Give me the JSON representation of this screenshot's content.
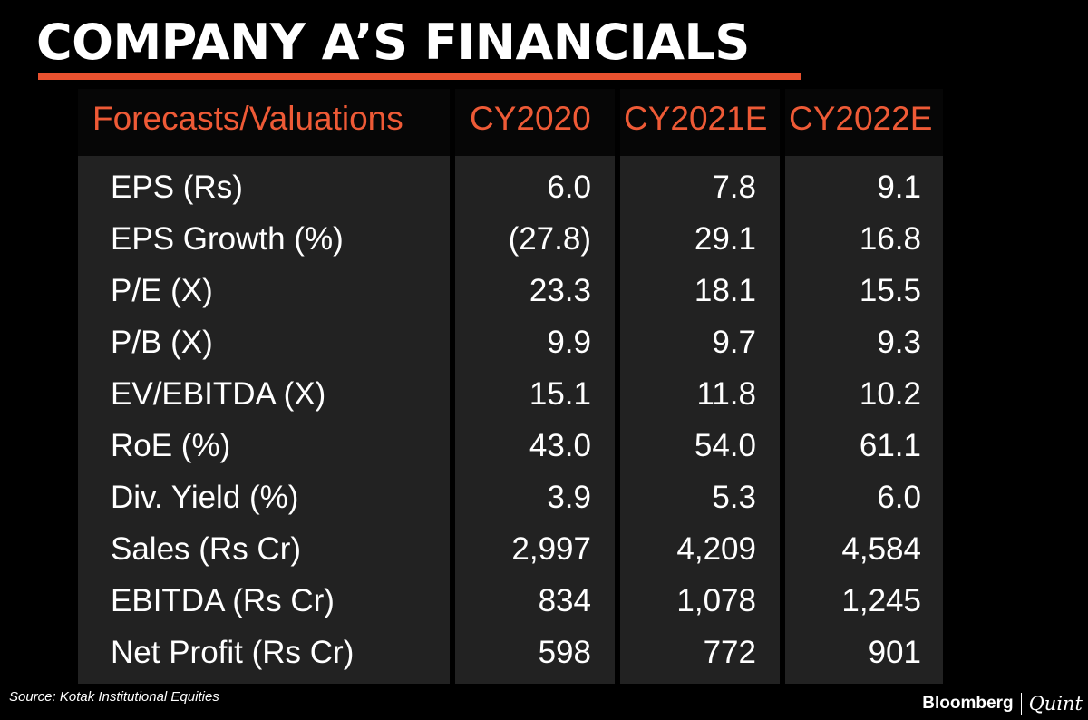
{
  "title": "COMPANY A’S FINANCIALS",
  "colors": {
    "background": "#000000",
    "accent": "#e8512f",
    "header_text": "#ee5a36",
    "cell_background": "#222222",
    "text": "#ffffff"
  },
  "chart_data": {
    "type": "table",
    "columns": [
      "Forecasts/Valuations",
      "CY2020",
      "CY2021E",
      "CY2022E"
    ],
    "rows": [
      {
        "metric": "EPS (Rs)",
        "values": [
          "6.0",
          "7.8",
          "9.1"
        ]
      },
      {
        "metric": "EPS Growth (%)",
        "values": [
          "(27.8)",
          "29.1",
          "16.8"
        ]
      },
      {
        "metric": "P/E (X)",
        "values": [
          "23.3",
          "18.1",
          "15.5"
        ]
      },
      {
        "metric": "P/B (X)",
        "values": [
          "9.9",
          "9.7",
          "9.3"
        ]
      },
      {
        "metric": "EV/EBITDA (X)",
        "values": [
          "15.1",
          "11.8",
          "10.2"
        ]
      },
      {
        "metric": "RoE (%)",
        "values": [
          "43.0",
          "54.0",
          "61.1"
        ]
      },
      {
        "metric": "Div. Yield (%)",
        "values": [
          "3.9",
          "5.3",
          "6.0"
        ]
      },
      {
        "metric": "Sales (Rs Cr)",
        "values": [
          "2,997",
          "4,209",
          "4,584"
        ]
      },
      {
        "metric": "EBITDA (Rs Cr)",
        "values": [
          "834",
          "1,078",
          "1,245"
        ]
      },
      {
        "metric": "Net Profit (Rs Cr)",
        "values": [
          "598",
          "772",
          "901"
        ]
      }
    ]
  },
  "source": "Source: Kotak Institutional Equities",
  "brand": {
    "primary": "Bloomberg",
    "secondary": "Quint"
  }
}
